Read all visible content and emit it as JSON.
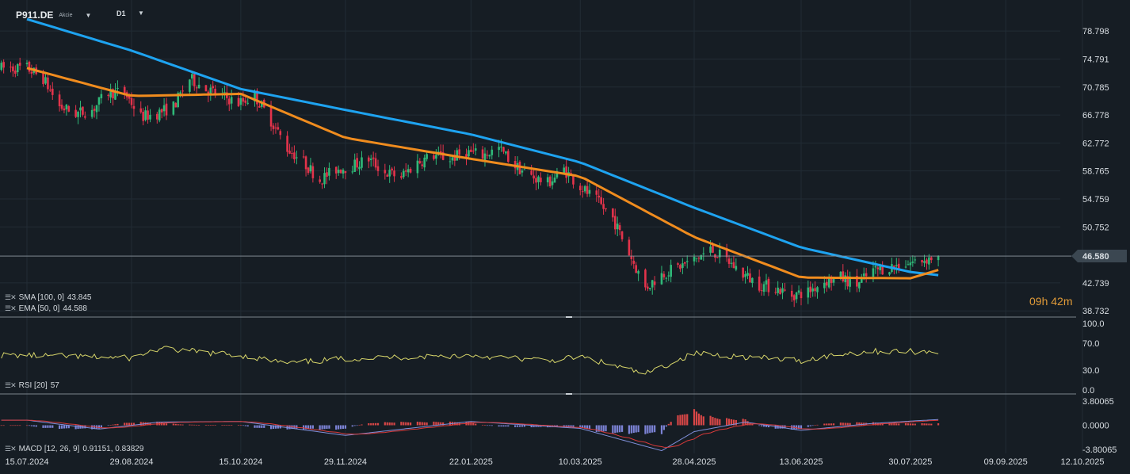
{
  "header": {
    "symbol": "P911.DE",
    "symbol_type": "Akcie",
    "timeframe": "D1",
    "caret": "▼"
  },
  "colors": {
    "background": "#161d24",
    "grid": "#222c35",
    "up": "#2fb978",
    "down": "#e3334b",
    "sma": "#1ea3f0",
    "ema": "#f08c1e",
    "rsi": "#d8d66a",
    "macd_line": "#7f8fd9",
    "macd_signal": "#d83a3a",
    "hist_pos": "#d94747",
    "hist_neg": "#7c83d6",
    "price_tag": "#3b4751"
  },
  "icons": [
    "settings-icon",
    "close-icon"
  ],
  "legend": {
    "sma": {
      "name": "SMA [100, 0]",
      "value": "43.845"
    },
    "ema": {
      "name": "EMA [50, 0]",
      "value": "44.588"
    },
    "rsi": {
      "name": "RSI [20]",
      "value": "57.0"
    },
    "macd": {
      "name": "MACD [12, 26, 9]",
      "values": "0.91151,  0.83829"
    }
  },
  "timer": "09h 42m",
  "chart_data": {
    "type": "candlestick",
    "price_axis_labels": [
      "78.798",
      "74.791",
      "70.785",
      "66.778",
      "62.772",
      "58.765",
      "54.759",
      "50.752",
      "42.739",
      "38.732"
    ],
    "current_price": "46.580",
    "ylim": [
      38.3,
      81.2
    ],
    "x_tick_labels": [
      "15.07.2024",
      "29.08.2024",
      "15.10.2024",
      "29.11.2024",
      "22.01.2025",
      "10.03.2025",
      "28.04.2025",
      "13.06.2025",
      "30.07.2025",
      "09.09.2025",
      "12.10.2025"
    ],
    "close_anchors": [
      [
        "15.07.2024",
        73.5
      ],
      [
        "22.07.2024",
        72.0
      ],
      [
        "29.07.2024",
        68.0
      ],
      [
        "05.08.2024",
        67.0
      ],
      [
        "12.08.2024",
        67.5
      ],
      [
        "19.08.2024",
        70.0
      ],
      [
        "26.08.2024",
        70.0
      ],
      [
        "02.09.2024",
        66.5
      ],
      [
        "09.09.2024",
        67.0
      ],
      [
        "16.09.2024",
        68.0
      ],
      [
        "23.09.2024",
        72.0
      ],
      [
        "30.09.2024",
        70.5
      ],
      [
        "07.10.2024",
        69.5
      ],
      [
        "14.10.2024",
        68.5
      ],
      [
        "21.10.2024",
        69.5
      ],
      [
        "28.10.2024",
        66.0
      ],
      [
        "04.11.2024",
        62.0
      ],
      [
        "11.11.2024",
        60.0
      ],
      [
        "18.11.2024",
        57.5
      ],
      [
        "25.11.2024",
        59.0
      ],
      [
        "02.12.2024",
        59.5
      ],
      [
        "09.12.2024",
        60.5
      ],
      [
        "16.12.2024",
        58.5
      ],
      [
        "23.12.2024",
        58.0
      ],
      [
        "30.12.2024",
        60.0
      ],
      [
        "06.01.2025",
        61.0
      ],
      [
        "13.01.2025",
        60.5
      ],
      [
        "20.01.2025",
        61.5
      ],
      [
        "27.01.2025",
        61.0
      ],
      [
        "03.02.2025",
        62.0
      ],
      [
        "10.02.2025",
        59.5
      ],
      [
        "17.02.2025",
        58.0
      ],
      [
        "24.02.2025",
        57.0
      ],
      [
        "03.03.2025",
        59.0
      ],
      [
        "10.03.2025",
        56.5
      ],
      [
        "17.03.2025",
        54.5
      ],
      [
        "24.03.2025",
        52.0
      ],
      [
        "31.03.2025",
        47.0
      ],
      [
        "07.04.2025",
        42.0
      ],
      [
        "14.04.2025",
        44.0
      ],
      [
        "21.04.2025",
        45.0
      ],
      [
        "28.04.2025",
        46.0
      ],
      [
        "05.05.2025",
        47.5
      ],
      [
        "12.05.2025",
        46.0
      ],
      [
        "19.05.2025",
        44.0
      ],
      [
        "26.05.2025",
        42.5
      ],
      [
        "02.06.2025",
        42.0
      ],
      [
        "09.06.2025",
        41.0
      ],
      [
        "16.06.2025",
        41.5
      ],
      [
        "23.06.2025",
        43.0
      ],
      [
        "30.06.2025",
        43.5
      ],
      [
        "07.07.2025",
        42.5
      ],
      [
        "14.07.2025",
        44.5
      ],
      [
        "21.07.2025",
        45.0
      ],
      [
        "28.07.2025",
        45.5
      ],
      [
        "04.08.2025",
        46.0
      ],
      [
        "11.08.2025",
        46.58
      ]
    ],
    "sma_100": [
      [
        "15.07.2024",
        80.5
      ],
      [
        "29.08.2024",
        76.0
      ],
      [
        "15.10.2024",
        70.5
      ],
      [
        "29.11.2024",
        67.5
      ],
      [
        "22.01.2025",
        64.0
      ],
      [
        "10.03.2025",
        60.0
      ],
      [
        "28.04.2025",
        53.5
      ],
      [
        "13.06.2025",
        47.8
      ],
      [
        "30.07.2025",
        44.3
      ],
      [
        "11.08.2025",
        43.845
      ]
    ],
    "ema_50": [
      [
        "15.07.2024",
        73.5
      ],
      [
        "29.08.2024",
        69.5
      ],
      [
        "15.10.2024",
        69.8
      ],
      [
        "29.11.2024",
        63.5
      ],
      [
        "22.01.2025",
        60.5
      ],
      [
        "10.03.2025",
        58.0
      ],
      [
        "28.04.2025",
        49.3
      ],
      [
        "13.06.2025",
        43.5
      ],
      [
        "30.07.2025",
        43.4
      ],
      [
        "11.08.2025",
        44.588
      ]
    ],
    "rsi": {
      "levels": [
        "100.0",
        "70.0",
        "30.0",
        "0.0"
      ],
      "last": 57.0,
      "anchors": [
        [
          "15.07.2024",
          52
        ],
        [
          "29.08.2024",
          48
        ],
        [
          "10.09.2024",
          62
        ],
        [
          "15.10.2024",
          52
        ],
        [
          "04.11.2024",
          40
        ],
        [
          "29.11.2024",
          47
        ],
        [
          "22.01.2025",
          52
        ],
        [
          "25.02.2025",
          44
        ],
        [
          "10.03.2025",
          50
        ],
        [
          "07.04.2025",
          24
        ],
        [
          "28.04.2025",
          55
        ],
        [
          "13.06.2025",
          44
        ],
        [
          "30.06.2025",
          54
        ],
        [
          "14.07.2025",
          58
        ],
        [
          "30.07.2025",
          58
        ],
        [
          "11.08.2025",
          57
        ]
      ]
    },
    "macd": {
      "levels": [
        "3.80065",
        "0.0000",
        "-3.80065"
      ],
      "anchors": [
        [
          "15.07.2024",
          0.8
        ],
        [
          "15.08.2024",
          -0.6
        ],
        [
          "10.09.2024",
          0.5
        ],
        [
          "15.10.2024",
          0.6
        ],
        [
          "29.11.2024",
          -1.6
        ],
        [
          "22.01.2025",
          0.6
        ],
        [
          "10.03.2025",
          -0.5
        ],
        [
          "14.04.2025",
          -4.0
        ],
        [
          "28.04.2025",
          -1.0
        ],
        [
          "20.05.2025",
          0.5
        ],
        [
          "13.06.2025",
          -0.8
        ],
        [
          "14.07.2025",
          0.3
        ],
        [
          "11.08.2025",
          0.91
        ]
      ]
    }
  }
}
